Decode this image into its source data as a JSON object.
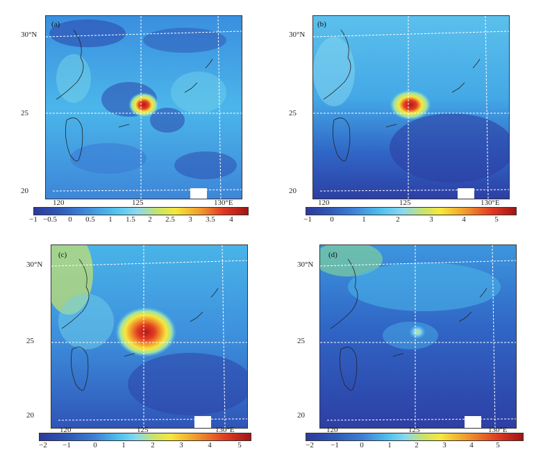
{
  "colors": {
    "deep_blue": "#2b3a9c",
    "mid_blue": "#3d7fd6",
    "cyan": "#4fc3ee",
    "light_cyan": "#8ad8f0",
    "yellow_green": "#c9e36a",
    "yellow": "#f6e83c",
    "orange": "#f19a2c",
    "red": "#d6261f",
    "dark_red": "#a01515"
  },
  "panels": [
    {
      "label": "(a)",
      "lat_labels": [
        "30°N",
        "25",
        "20"
      ],
      "lon_labels": [
        "120",
        "125",
        "130°E"
      ],
      "colorbar_ticks": [
        "−1",
        "−0.5",
        "0",
        "0.5",
        "1",
        "1.5",
        "2",
        "2.5",
        "3",
        "3.5",
        "4"
      ]
    },
    {
      "label": "(b)",
      "lat_labels": [
        "30°N",
        "25",
        "20"
      ],
      "lon_labels": [
        "120",
        "125",
        "130°E"
      ],
      "colorbar_ticks": [
        "−1",
        "0",
        "1",
        "2",
        "3",
        "4",
        "5"
      ]
    },
    {
      "label": "(c)",
      "lat_labels": [
        "30°N",
        "25",
        "20"
      ],
      "lon_labels": [
        "120",
        "125",
        "130°E"
      ],
      "colorbar_ticks": [
        "−2",
        "−1",
        "0",
        "1",
        "2",
        "3",
        "4",
        "5"
      ]
    },
    {
      "label": "(d)",
      "lat_labels": [
        "30°N",
        "25",
        "20"
      ],
      "lon_labels": [
        "120",
        "125",
        "130°E"
      ],
      "colorbar_ticks": [
        "−2",
        "−1",
        "0",
        "1",
        "2",
        "3",
        "4",
        "5"
      ]
    }
  ]
}
